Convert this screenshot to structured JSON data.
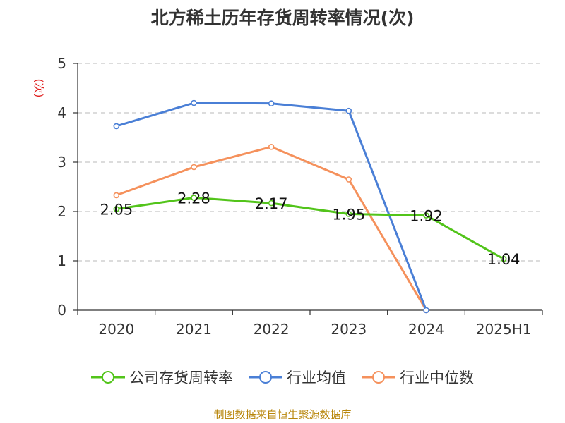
{
  "chart_data": {
    "type": "line",
    "title": "北方稀土历年存货周转率情况(次)",
    "ylabel": "(次)",
    "xlabel": "",
    "categories": [
      "2020",
      "2021",
      "2022",
      "2023",
      "2024",
      "2025H1"
    ],
    "ylim": [
      0,
      5
    ],
    "yticks": [
      0,
      1,
      2,
      3,
      4,
      5
    ],
    "grid": true,
    "grid_style": "dashed-horizontal",
    "legend_position": "bottom",
    "series": [
      {
        "name": "公司存货周转率",
        "color": "#52c41a",
        "values": [
          2.05,
          2.28,
          2.17,
          1.95,
          1.92,
          1.04
        ],
        "show_labels": true
      },
      {
        "name": "行业均值",
        "color": "#4a7fd6",
        "values": [
          3.73,
          4.2,
          4.19,
          4.04,
          0,
          null
        ],
        "show_labels": false
      },
      {
        "name": "行业中位数",
        "color": "#f5915c",
        "values": [
          2.33,
          2.9,
          3.31,
          2.65,
          0,
          null
        ],
        "show_labels": false
      }
    ],
    "source": "制图数据来自恒生聚源数据库"
  }
}
